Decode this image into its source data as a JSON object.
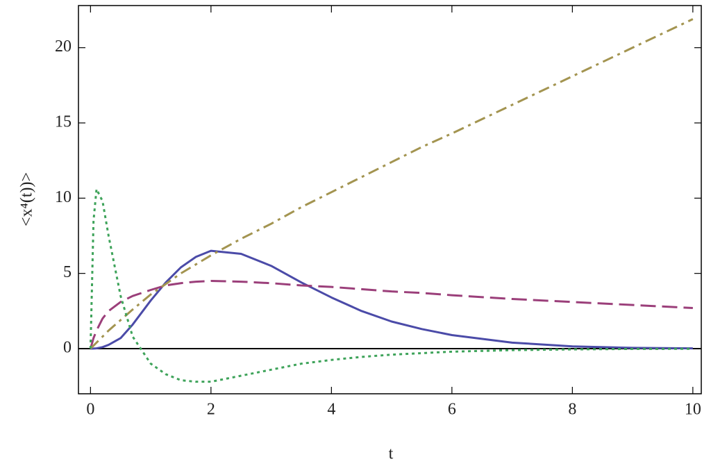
{
  "chart_data": {
    "type": "line",
    "x_label": "t",
    "y_label": "<x⁴(t))>",
    "x": [
      0,
      0.05,
      0.1,
      0.2,
      0.3,
      0.5,
      0.7,
      1,
      1.25,
      1.5,
      1.75,
      2,
      2.5,
      3,
      3.5,
      4,
      4.5,
      5,
      5.5,
      6,
      7,
      8,
      9,
      10
    ],
    "series": [
      {
        "color": "#4b4ba8",
        "dash": "solid",
        "values": [
          0,
          0.005,
          0.02,
          0.1,
          0.25,
          0.7,
          1.6,
          3.2,
          4.4,
          5.4,
          6.1,
          6.5,
          6.3,
          5.5,
          4.4,
          3.4,
          2.5,
          1.8,
          1.3,
          0.9,
          0.4,
          0.15,
          0.05,
          0.02
        ]
      },
      {
        "color": "#9b3f7a",
        "dash": "dashed",
        "values": [
          0,
          0.7,
          1.2,
          2.0,
          2.5,
          3.1,
          3.5,
          3.9,
          4.2,
          4.35,
          4.45,
          4.5,
          4.45,
          4.35,
          4.2,
          4.1,
          3.95,
          3.8,
          3.7,
          3.55,
          3.3,
          3.1,
          2.9,
          2.7
        ]
      },
      {
        "color": "#a39450",
        "dash": "dashdot",
        "values": [
          0,
          0.2,
          0.4,
          0.8,
          1.2,
          1.9,
          2.6,
          3.6,
          4.3,
          5.0,
          5.6,
          6.2,
          7.3,
          8.3,
          9.4,
          10.4,
          11.4,
          12.4,
          13.4,
          14.3,
          16.2,
          18.1,
          20.0,
          21.9
        ]
      },
      {
        "color": "#3ea35a",
        "dash": "dotted",
        "values": [
          0,
          8.5,
          10.6,
          9.8,
          7.5,
          3.5,
          0.8,
          -1.0,
          -1.7,
          -2.1,
          -2.2,
          -2.2,
          -1.8,
          -1.4,
          -1.0,
          -0.75,
          -0.55,
          -0.4,
          -0.3,
          -0.2,
          -0.1,
          -0.05,
          -0.02,
          -0.01
        ]
      }
    ],
    "xlim": [
      -0.2,
      10.14
    ],
    "ylim": [
      -3,
      22.8
    ],
    "xticks": [
      0,
      2,
      4,
      6,
      8,
      10
    ],
    "yticks": [
      0,
      5,
      10,
      15,
      20
    ],
    "grid": false
  }
}
